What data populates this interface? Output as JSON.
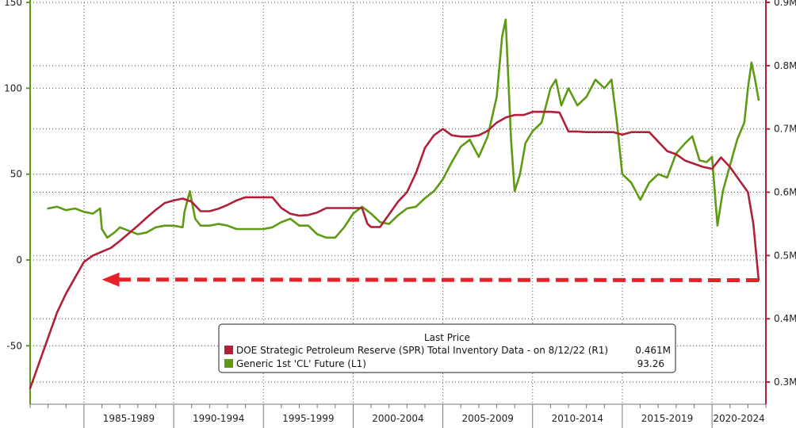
{
  "chart_data": {
    "type": "line",
    "title": "",
    "xlabel": "",
    "ylabel_left": "",
    "ylabel_right": "",
    "x_categories": [
      "1985-1989",
      "1990-1994",
      "1995-1999",
      "2000-2004",
      "2005-2009",
      "2010-2014",
      "2015-2019",
      "2020-2024"
    ],
    "x_range": [
      1982.0,
      2023.0
    ],
    "y_left": {
      "ticks": [
        150,
        100,
        50,
        0,
        -50
      ],
      "range": [
        -84,
        150
      ]
    },
    "y_right": {
      "ticks": [
        "0.9M",
        "0.8M",
        "0.7M",
        "0.6M",
        "0.5M",
        "0.4M",
        "0.3M"
      ],
      "tick_values": [
        0.9,
        0.8,
        0.7,
        0.6,
        0.5,
        0.4,
        0.3
      ],
      "range": [
        0.265,
        0.9
      ]
    },
    "grid": true,
    "legend": {
      "position": "bottom-center",
      "heading": "Last Price",
      "entries": [
        {
          "label": "DOE Strategic Petroleum Reserve (SPR) Total Inventory Data -  on 8/12/22  (R1)",
          "value": "0.461M",
          "color": "#b0203a"
        },
        {
          "label": "Generic 1st 'CL' Future  (L1)",
          "value": "93.26",
          "color": "#5e9a14"
        }
      ]
    },
    "annotation": {
      "type": "dashed-arrow",
      "color": "#e8202a",
      "from": {
        "x": 2022.6,
        "y": 0.461
      },
      "to": {
        "x": 1986.0,
        "y": 0.462
      }
    },
    "series": [
      {
        "name": "DOE Strategic Petroleum Reserve (SPR) Total Inventory Data -  on 8/12/22  (R1)",
        "axis": "right",
        "color": "#b0203a",
        "x": [
          1982.0,
          1982.5,
          1983.0,
          1983.5,
          1984.0,
          1984.5,
          1985.0,
          1985.5,
          1986.0,
          1986.5,
          1987.0,
          1987.5,
          1988.0,
          1988.5,
          1989.0,
          1989.5,
          1990.0,
          1990.5,
          1991.0,
          1991.5,
          1992.0,
          1992.5,
          1993.0,
          1993.5,
          1994.0,
          1994.5,
          1995.0,
          1995.5,
          1996.0,
          1996.5,
          1997.0,
          1997.5,
          1998.0,
          1998.5,
          1999.0,
          1999.5,
          2000.0,
          2000.5,
          2000.8,
          2001.0,
          2001.5,
          2002.0,
          2002.5,
          2003.0,
          2003.5,
          2004.0,
          2004.5,
          2005.0,
          2005.5,
          2006.0,
          2006.5,
          2007.0,
          2007.5,
          2008.0,
          2008.5,
          2009.0,
          2009.5,
          2010.0,
          2010.5,
          2011.0,
          2011.5,
          2012.0,
          2012.5,
          2013.0,
          2013.5,
          2014.0,
          2014.5,
          2015.0,
          2015.5,
          2016.0,
          2016.5,
          2017.0,
          2017.5,
          2018.0,
          2018.5,
          2019.0,
          2019.5,
          2020.0,
          2020.5,
          2021.0,
          2021.5,
          2022.0,
          2022.3,
          2022.6
        ],
        "values": [
          0.29,
          0.33,
          0.37,
          0.41,
          0.44,
          0.465,
          0.49,
          0.5,
          0.506,
          0.512,
          0.523,
          0.535,
          0.547,
          0.56,
          0.572,
          0.583,
          0.587,
          0.59,
          0.585,
          0.57,
          0.57,
          0.574,
          0.58,
          0.587,
          0.592,
          0.592,
          0.592,
          0.592,
          0.575,
          0.566,
          0.563,
          0.564,
          0.568,
          0.575,
          0.575,
          0.575,
          0.575,
          0.575,
          0.55,
          0.545,
          0.545,
          0.565,
          0.585,
          0.6,
          0.63,
          0.67,
          0.69,
          0.7,
          0.69,
          0.688,
          0.688,
          0.69,
          0.697,
          0.71,
          0.718,
          0.722,
          0.722,
          0.727,
          0.727,
          0.727,
          0.726,
          0.696,
          0.696,
          0.695,
          0.695,
          0.695,
          0.695,
          0.691,
          0.695,
          0.695,
          0.695,
          0.68,
          0.665,
          0.66,
          0.65,
          0.645,
          0.64,
          0.637,
          0.655,
          0.64,
          0.62,
          0.6,
          0.55,
          0.461
        ]
      },
      {
        "name": "Generic 1st 'CL' Future  (L1)",
        "axis": "left",
        "color": "#5e9a14",
        "x": [
          1983.0,
          1983.5,
          1984.0,
          1984.5,
          1985.0,
          1985.5,
          1985.9,
          1986.0,
          1986.3,
          1986.7,
          1987.0,
          1987.5,
          1988.0,
          1988.5,
          1989.0,
          1989.5,
          1990.0,
          1990.5,
          1990.6,
          1990.9,
          1991.2,
          1991.5,
          1992.0,
          1992.5,
          1993.0,
          1993.5,
          1994.0,
          1994.5,
          1995.0,
          1995.5,
          1996.0,
          1996.5,
          1997.0,
          1997.5,
          1998.0,
          1998.5,
          1999.0,
          1999.5,
          2000.0,
          2000.5,
          2001.0,
          2001.5,
          2002.0,
          2002.5,
          2003.0,
          2003.5,
          2004.0,
          2004.5,
          2005.0,
          2005.5,
          2006.0,
          2006.5,
          2007.0,
          2007.5,
          2008.0,
          2008.3,
          2008.5,
          2008.8,
          2009.0,
          2009.3,
          2009.6,
          2010.0,
          2010.5,
          2011.0,
          2011.3,
          2011.6,
          2012.0,
          2012.5,
          2013.0,
          2013.5,
          2014.0,
          2014.4,
          2014.7,
          2015.0,
          2015.5,
          2016.0,
          2016.5,
          2017.0,
          2017.5,
          2018.0,
          2018.5,
          2018.9,
          2019.3,
          2019.7,
          2020.0,
          2020.3,
          2020.6,
          2021.0,
          2021.4,
          2021.8,
          2022.0,
          2022.2,
          2022.4,
          2022.6
        ],
        "values": [
          30,
          31,
          29,
          30,
          28,
          27,
          30,
          18,
          13,
          16,
          19,
          17,
          15,
          16,
          19,
          20,
          20,
          19,
          28,
          40,
          24,
          20,
          20,
          21,
          20,
          18,
          18,
          18,
          18,
          19,
          22,
          24,
          20,
          20,
          15,
          13,
          13,
          19,
          27,
          31,
          27,
          22,
          21,
          26,
          30,
          31,
          36,
          40,
          47,
          57,
          66,
          70,
          60,
          72,
          95,
          130,
          140,
          70,
          40,
          50,
          68,
          75,
          80,
          100,
          105,
          90,
          100,
          90,
          95,
          105,
          100,
          105,
          80,
          50,
          45,
          35,
          45,
          50,
          48,
          62,
          68,
          72,
          58,
          57,
          60,
          20,
          40,
          55,
          70,
          80,
          100,
          115,
          105,
          93.26
        ]
      }
    ]
  }
}
